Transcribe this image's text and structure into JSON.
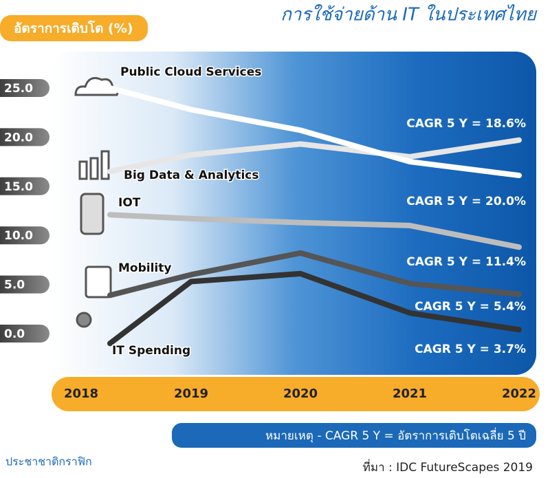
{
  "chart_data": {
    "type": "line",
    "title": "การใช้จ่ายด้าน IT ในประเทศไทย",
    "y_label": "อัตราการเติบโต (%)",
    "categories": [
      "2018",
      "2019",
      "2020",
      "2021",
      "2022"
    ],
    "series": [
      {
        "name": "Public Cloud Services",
        "color": "#ffffff",
        "values": [
          25.0,
          22.8,
          20.7,
          17.5,
          16.1
        ]
      },
      {
        "name": "Big Data & Analytics",
        "color": "#e6e6e6",
        "values": [
          16.5,
          18.2,
          19.3,
          18.0,
          19.7
        ]
      },
      {
        "name": "IOT",
        "color": "#bdbdbd",
        "values": [
          12.1,
          11.7,
          11.3,
          11.0,
          8.8
        ]
      },
      {
        "name": "Mobility",
        "color": "#555555",
        "values": [
          3.9,
          6.0,
          8.2,
          5.1,
          4.0
        ]
      },
      {
        "name": "IT Spending",
        "color": "#333333",
        "values": [
          -1.0,
          5.3,
          6.1,
          2.1,
          0.4
        ]
      }
    ],
    "annotations": [
      "CAGR 5 Y = 18.6%",
      "CAGR 5 Y = 20.0%",
      "CAGR 5 Y = 11.4%",
      "CAGR 5 Y = 5.4%",
      "CAGR 5 Y = 3.7%"
    ],
    "ylim": [
      -2,
      27
    ],
    "yticks": [
      {
        "value": 0,
        "label": "0.0"
      },
      {
        "value": 5,
        "label": "5.0"
      },
      {
        "value": 10,
        "label": "10.0"
      },
      {
        "value": 15,
        "label": "15.0"
      },
      {
        "value": 20,
        "label": "20.0"
      },
      {
        "value": 25,
        "label": "25.0"
      }
    ],
    "note": "หมายเหตุ - CAGR 5 Y = อัตราการเติบโตเฉลี่ย 5 ปี",
    "source": "ที่มา : IDC FutureScapes 2019",
    "credit": "ประชาชาติกราฟิก"
  }
}
